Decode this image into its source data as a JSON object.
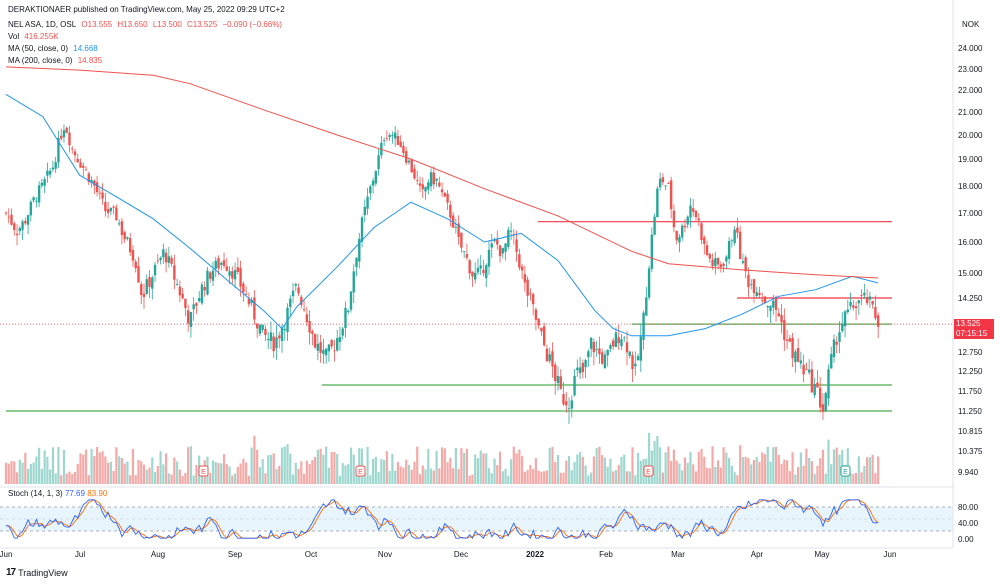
{
  "header": {
    "publisher": "DERAKTIONAER published on TradingView.com, May 25, 2022 09:29 UTC+2",
    "symbol": "NEL ASA, 1D, OSL",
    "o": "O13.555",
    "h": "H13.650",
    "l": "L13.500",
    "c": "C13.525",
    "chg": "−0.090 (−0.66%)",
    "vol_label": "Vol",
    "vol_value": "416.255K",
    "ma50_label": "MA (50, close, 0)",
    "ma50_value": "14.668",
    "ma200_label": "MA (200, close, 0)",
    "ma200_value": "14.835",
    "currency": "NOK"
  },
  "stoch": {
    "label": "Stoch (14, 1, 3)",
    "k_value": "77.69",
    "d_value": "83.90"
  },
  "current_price": {
    "price": "13.525",
    "countdown": "07:15:15"
  },
  "footer": {
    "brand": "TradingView"
  },
  "colors": {
    "up": "#26a69a",
    "down": "#ef5350",
    "ma50": "#2196f3",
    "ma200": "#f0524e",
    "resistance": "#f23645",
    "support": "#4caf50",
    "stoch_k": "#2962ff",
    "stoch_d": "#ff6d00"
  },
  "chart_data": {
    "type": "candlestick",
    "title": "NEL ASA, 1D, OSL",
    "yunit": "NOK",
    "y_ticks": [
      "24.000",
      "23.000",
      "22.000",
      "21.000",
      "20.000",
      "19.000",
      "18.000",
      "17.000",
      "16.000",
      "15.000",
      "14.250",
      "13.500",
      "12.750",
      "12.250",
      "11.750",
      "11.250",
      "10.815",
      "10.375",
      "9.940"
    ],
    "x_ticks": [
      "Jun",
      "Jul",
      "Aug",
      "Sep",
      "Oct",
      "Nov",
      "Dec",
      "2022",
      "Feb",
      "Mar",
      "Apr",
      "May",
      "Jun"
    ],
    "close_path": [
      [
        0,
        17.0
      ],
      [
        6,
        16.4
      ],
      [
        10,
        16.7
      ],
      [
        16,
        17.6
      ],
      [
        20,
        18.0
      ],
      [
        26,
        18.8
      ],
      [
        29,
        19.8
      ],
      [
        32,
        20.5
      ],
      [
        36,
        19.4
      ],
      [
        42,
        18.7
      ],
      [
        48,
        18.0
      ],
      [
        54,
        17.1
      ],
      [
        60,
        16.9
      ],
      [
        64,
        16.2
      ],
      [
        70,
        15.5
      ],
      [
        74,
        14.3
      ],
      [
        80,
        15.0
      ],
      [
        86,
        15.7
      ],
      [
        90,
        15.1
      ],
      [
        96,
        14.2
      ],
      [
        100,
        13.6
      ],
      [
        106,
        14.5
      ],
      [
        112,
        15.1
      ],
      [
        118,
        15.4
      ],
      [
        124,
        15.0
      ],
      [
        128,
        14.6
      ],
      [
        134,
        13.9
      ],
      [
        140,
        13.2
      ],
      [
        146,
        13.0
      ],
      [
        152,
        13.7
      ],
      [
        158,
        14.6
      ],
      [
        162,
        14.0
      ],
      [
        168,
        13.0
      ],
      [
        174,
        12.6
      ],
      [
        178,
        12.9
      ],
      [
        182,
        13.4
      ],
      [
        186,
        14.0
      ],
      [
        190,
        15.5
      ],
      [
        194,
        16.8
      ],
      [
        198,
        17.9
      ],
      [
        202,
        18.9
      ],
      [
        206,
        20.1
      ],
      [
        210,
        20.0
      ],
      [
        214,
        19.7
      ],
      [
        218,
        19.0
      ],
      [
        222,
        18.4
      ],
      [
        226,
        17.6
      ],
      [
        230,
        18.3
      ],
      [
        234,
        18.2
      ],
      [
        238,
        17.5
      ],
      [
        242,
        16.9
      ],
      [
        246,
        16.0
      ],
      [
        250,
        15.5
      ],
      [
        254,
        14.9
      ],
      [
        258,
        15.0
      ],
      [
        262,
        15.6
      ],
      [
        266,
        16.0
      ],
      [
        270,
        15.6
      ],
      [
        274,
        16.4
      ],
      [
        278,
        15.6
      ],
      [
        282,
        14.6
      ],
      [
        286,
        14.0
      ],
      [
        290,
        13.3
      ],
      [
        294,
        12.7
      ],
      [
        298,
        12.2
      ],
      [
        302,
        11.6
      ],
      [
        306,
        11.5
      ],
      [
        310,
        12.2
      ],
      [
        314,
        12.2
      ],
      [
        318,
        13.0
      ],
      [
        322,
        12.7
      ],
      [
        326,
        12.5
      ],
      [
        330,
        13.0
      ],
      [
        334,
        13.3
      ],
      [
        338,
        12.9
      ],
      [
        342,
        12.2
      ],
      [
        346,
        13.4
      ],
      [
        350,
        15.6
      ],
      [
        354,
        17.8
      ],
      [
        356,
        18.3
      ],
      [
        360,
        17.9
      ],
      [
        364,
        16.1
      ],
      [
        368,
        16.5
      ],
      [
        372,
        17.3
      ],
      [
        376,
        16.8
      ],
      [
        380,
        15.7
      ],
      [
        384,
        15.3
      ],
      [
        388,
        15.2
      ],
      [
        392,
        15.6
      ],
      [
        396,
        16.6
      ],
      [
        400,
        15.3
      ],
      [
        404,
        14.7
      ],
      [
        408,
        14.6
      ],
      [
        412,
        14.2
      ],
      [
        416,
        14.1
      ],
      [
        420,
        13.8
      ],
      [
        424,
        13.1
      ],
      [
        428,
        12.7
      ],
      [
        432,
        12.4
      ],
      [
        436,
        12.1
      ],
      [
        440,
        11.8
      ],
      [
        444,
        11.3
      ],
      [
        448,
        12.4
      ],
      [
        452,
        13.3
      ],
      [
        456,
        13.7
      ],
      [
        460,
        14.0
      ],
      [
        464,
        14.2
      ],
      [
        468,
        14.2
      ],
      [
        470,
        14.0
      ],
      [
        474,
        13.6
      ]
    ],
    "ma50_path": [
      [
        0,
        21.8
      ],
      [
        20,
        20.8
      ],
      [
        40,
        18.4
      ],
      [
        60,
        17.6
      ],
      [
        80,
        16.8
      ],
      [
        100,
        15.8
      ],
      [
        120,
        14.8
      ],
      [
        140,
        13.9
      ],
      [
        150,
        13.4
      ],
      [
        158,
        14.0
      ],
      [
        180,
        15.2
      ],
      [
        200,
        16.5
      ],
      [
        220,
        17.4
      ],
      [
        240,
        16.8
      ],
      [
        260,
        16.0
      ],
      [
        280,
        16.3
      ],
      [
        300,
        15.4
      ],
      [
        320,
        13.9
      ],
      [
        330,
        13.4
      ],
      [
        340,
        13.2
      ],
      [
        360,
        13.2
      ],
      [
        380,
        13.4
      ],
      [
        400,
        13.8
      ],
      [
        420,
        14.3
      ],
      [
        440,
        14.5
      ],
      [
        460,
        14.9
      ],
      [
        474,
        14.7
      ]
    ],
    "ma200_path": [
      [
        0,
        23.1
      ],
      [
        40,
        22.95
      ],
      [
        80,
        22.7
      ],
      [
        100,
        22.3
      ],
      [
        140,
        21.1
      ],
      [
        180,
        20.0
      ],
      [
        220,
        19.0
      ],
      [
        260,
        17.9
      ],
      [
        300,
        16.9
      ],
      [
        340,
        15.7
      ],
      [
        360,
        15.3
      ],
      [
        400,
        15.1
      ],
      [
        440,
        14.95
      ],
      [
        474,
        14.85
      ]
    ],
    "levels": [
      {
        "name": "resistance-1",
        "price": 16.7,
        "from": "Dec",
        "to": "Jun",
        "color": "#f23645"
      },
      {
        "name": "resistance-2",
        "price": 14.25,
        "from": "Apr",
        "to": "Jun",
        "color": "#f23645"
      },
      {
        "name": "support-1",
        "price": 13.525,
        "from": "Feb",
        "to": "Jun",
        "color": "#4caf50"
      },
      {
        "name": "support-2",
        "price": 11.9,
        "from": "Oct",
        "to": "Jun",
        "color": "#4caf50"
      },
      {
        "name": "support-3",
        "price": 11.25,
        "from": "Jun",
        "to": "Jun",
        "color": "#4caf50"
      }
    ],
    "stoch_ticks": [
      "80.00",
      "40.00",
      "0.00"
    ],
    "stoch_band": [
      20,
      80
    ],
    "events": [
      "E",
      "E",
      "E",
      "E"
    ]
  }
}
